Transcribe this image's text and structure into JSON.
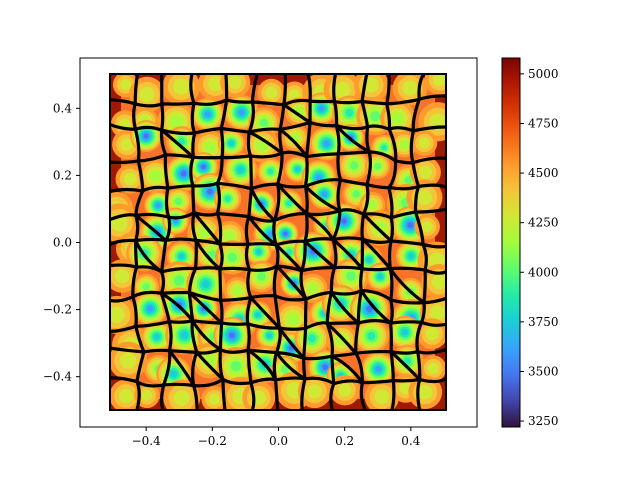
{
  "chart_data": {
    "type": "heatmap",
    "title": "",
    "xlabel": "",
    "ylabel": "",
    "xlim": [
      -0.6,
      0.6
    ],
    "ylim": [
      -0.55,
      0.55
    ],
    "domain": {
      "x": [
        -0.5,
        0.5
      ],
      "y": [
        -0.5,
        0.5
      ]
    },
    "x_ticks": [
      {
        "value": -0.4,
        "label": "−0.4"
      },
      {
        "value": -0.2,
        "label": "−0.2"
      },
      {
        "value": 0.0,
        "label": "0.0"
      },
      {
        "value": 0.2,
        "label": "0.2"
      },
      {
        "value": 0.4,
        "label": "0.4"
      }
    ],
    "y_ticks": [
      {
        "value": 0.4,
        "label": "0.4"
      },
      {
        "value": 0.2,
        "label": "0.2"
      },
      {
        "value": 0.0,
        "label": "0.0"
      },
      {
        "value": -0.2,
        "label": "−0.2"
      },
      {
        "value": -0.4,
        "label": "−0.4"
      }
    ],
    "colorbar": {
      "colormap": "turbo",
      "range": [
        3220,
        5080
      ],
      "ticks": [
        {
          "value": 3250,
          "label": "3250"
        },
        {
          "value": 3500,
          "label": "3500"
        },
        {
          "value": 3750,
          "label": "3750"
        },
        {
          "value": 4000,
          "label": "4000"
        },
        {
          "value": 4250,
          "label": "4250"
        },
        {
          "value": 4500,
          "label": "4500"
        },
        {
          "value": 4750,
          "label": "4750"
        },
        {
          "value": 5000,
          "label": "5000"
        }
      ]
    },
    "overlay": "black curved network lines (cell boundaries) over the field",
    "grid": false
  }
}
